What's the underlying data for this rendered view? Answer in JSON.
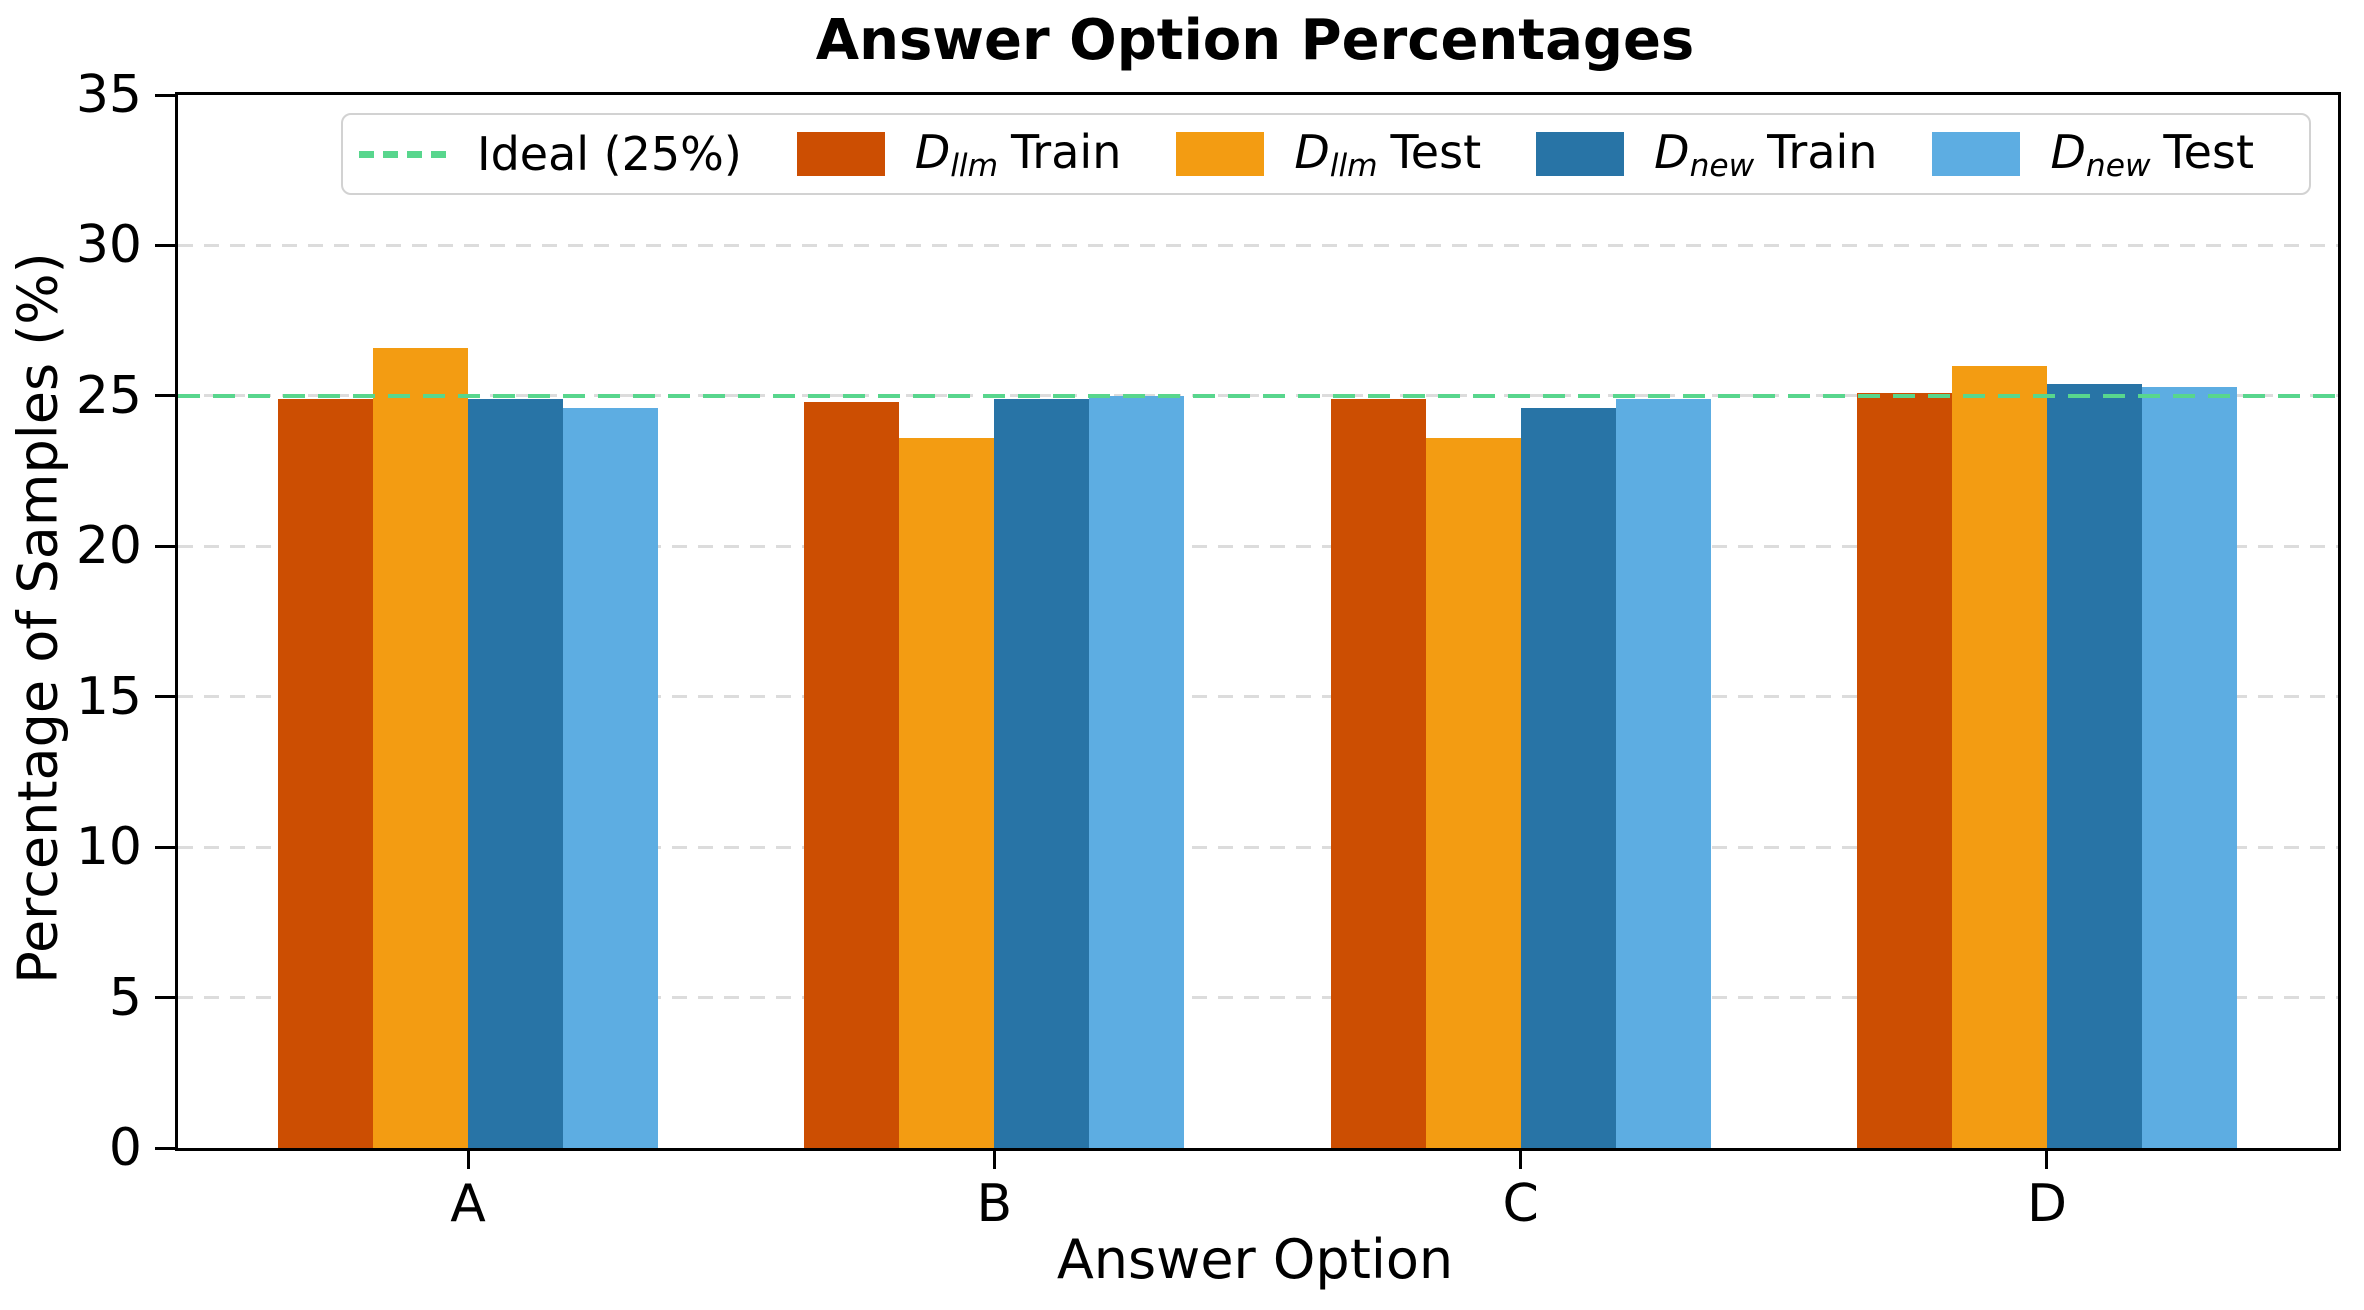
{
  "chart_data": {
    "type": "bar",
    "title": "Answer Option Percentages",
    "xlabel": "Answer Option",
    "ylabel": "Percentage of Samples (%)",
    "categories": [
      "A",
      "B",
      "C",
      "D"
    ],
    "series": [
      {
        "name": "D_llm Train",
        "color": "#CC4E02",
        "values": [
          24.9,
          24.8,
          24.9,
          25.1
        ]
      },
      {
        "name": "D_llm Test",
        "color": "#F39C12",
        "values": [
          26.6,
          23.6,
          23.6,
          26.0
        ]
      },
      {
        "name": "D_new Train",
        "color": "#2874A6",
        "values": [
          24.9,
          24.9,
          24.6,
          25.4
        ]
      },
      {
        "name": "D_new Test",
        "color": "#5DADE2",
        "values": [
          24.6,
          25.0,
          24.9,
          25.3
        ]
      }
    ],
    "reference_line": {
      "label": "Ideal (25%)",
      "value": 25,
      "color": "#58D68D",
      "style": "dashed"
    },
    "ylim": [
      0,
      35
    ],
    "yticks": [
      0,
      5,
      10,
      15,
      20,
      25,
      30,
      35
    ],
    "grid": "horizontal-dashed",
    "grid_color": "#DCDCDC",
    "legend_position": "upper-center-inside"
  },
  "legend": {
    "items": [
      {
        "label": "Ideal (25%)",
        "swatch": "dashed-line"
      },
      {
        "base": "D",
        "sub": "llm",
        "rest": "Train",
        "swatch": "patch",
        "series": 0
      },
      {
        "base": "D",
        "sub": "llm",
        "rest": "Test",
        "swatch": "patch",
        "series": 1
      },
      {
        "base": "D",
        "sub": "new",
        "rest": "Train",
        "swatch": "patch",
        "series": 2
      },
      {
        "base": "D",
        "sub": "new",
        "rest": "Test",
        "swatch": "patch",
        "series": 3
      }
    ]
  }
}
